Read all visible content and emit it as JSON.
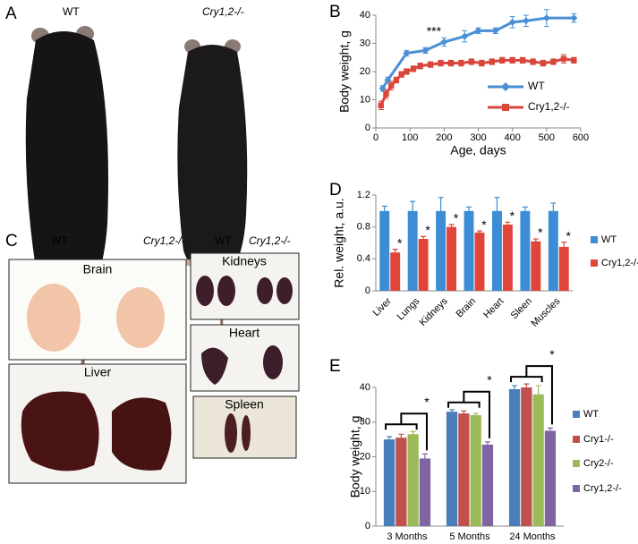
{
  "figure_a": {
    "panel": "A",
    "labels": [
      "WT",
      "Cry1,2-/-"
    ]
  },
  "figure_c": {
    "panel": "C",
    "labels": [
      "WT",
      "Cry1,2-/-",
      "WT",
      "Cry1,2-/-"
    ],
    "organs": [
      "Brain",
      "Liver",
      "Kidneys",
      "Heart",
      "Spleen"
    ]
  },
  "chart_data": [
    {
      "type": "line",
      "panel": "B",
      "x_label": "Age, days",
      "y_label": "Body weight, g",
      "annotation": "***",
      "xlim": [
        0,
        600
      ],
      "xticks": [
        0,
        100,
        200,
        300,
        400,
        500,
        600
      ],
      "ylim": [
        0,
        40
      ],
      "yticks": [
        0,
        10,
        20,
        30,
        40
      ],
      "legend": "right",
      "series": [
        {
          "name": "WT",
          "color": "#4a8fd4",
          "marker": "diamond",
          "x": [
            20,
            35,
            90,
            145,
            200,
            260,
            300,
            350,
            400,
            440,
            500,
            580
          ],
          "values": [
            14,
            17,
            26.5,
            27.5,
            30.5,
            32.5,
            34.5,
            34.5,
            37.5,
            38,
            39,
            39
          ],
          "errors": [
            1,
            1,
            1,
            1,
            1.5,
            2,
            1,
            1,
            2,
            2,
            3,
            1.5
          ]
        },
        {
          "name": "Cry1,2-/-",
          "color": "#d9463b",
          "marker": "square",
          "x": [
            15,
            30,
            45,
            60,
            75,
            90,
            110,
            130,
            160,
            190,
            220,
            250,
            280,
            310,
            340,
            370,
            400,
            430,
            460,
            490,
            520,
            550,
            580
          ],
          "values": [
            8,
            12,
            15,
            17,
            19,
            20,
            21,
            22,
            22.5,
            23,
            23,
            23,
            23.5,
            23,
            23.5,
            24,
            24,
            24,
            23.5,
            23,
            23.5,
            24.5,
            24
          ],
          "errors": [
            1.5,
            1.5,
            1.5,
            1,
            1,
            1,
            1,
            1,
            1,
            1,
            1,
            1,
            1,
            1,
            1,
            1,
            1,
            1,
            1,
            1,
            1,
            1.5,
            1
          ]
        }
      ]
    },
    {
      "type": "bar",
      "panel": "D",
      "y_label": "Rel. weight, a.u.",
      "annotation": "*",
      "label_rotation": -45,
      "categories": [
        "Liver",
        "Lungs",
        "Kidneys",
        "Brain",
        "Heart",
        "Sleen",
        "Muscles"
      ],
      "ylim": [
        0,
        1.2
      ],
      "yticks": [
        0,
        0.4,
        0.8,
        1.2
      ],
      "legend": "right",
      "series": [
        {
          "name": "WT",
          "color": "#3c8dd6",
          "values": [
            1,
            1,
            1,
            1,
            1,
            1,
            1
          ],
          "errors": [
            0.06,
            0.12,
            0.17,
            0.05,
            0.17,
            0.05,
            0.1
          ]
        },
        {
          "name": "Cry1,2-/-",
          "color": "#e0453a",
          "values": [
            0.48,
            0.65,
            0.8,
            0.73,
            0.83,
            0.62,
            0.55
          ],
          "errors": [
            0.04,
            0.03,
            0.03,
            0.02,
            0.03,
            0.03,
            0.06
          ]
        }
      ]
    },
    {
      "type": "bar",
      "panel": "E",
      "y_label": "Body weight, g",
      "annotation": "*",
      "brackets": true,
      "categories": [
        "3 Months",
        "5 Months",
        "24 Months"
      ],
      "ylim": [
        0,
        40
      ],
      "yticks": [
        0,
        10,
        20,
        30,
        40
      ],
      "legend": "right",
      "series": [
        {
          "name": "WT",
          "color": "#4a7ebb",
          "values": [
            25,
            33,
            39.5
          ],
          "errors": [
            0.8,
            0.6,
            1
          ]
        },
        {
          "name": "Cry1-/-",
          "color": "#c0504d",
          "values": [
            25.5,
            32.5,
            40
          ],
          "errors": [
            1,
            0.7,
            1
          ]
        },
        {
          "name": "Cry2-/-",
          "color": "#9bbb59",
          "values": [
            26.5,
            32,
            38
          ],
          "errors": [
            0.8,
            0.5,
            2.5
          ]
        },
        {
          "name": "Cry1,2-/-",
          "color": "#8064a2",
          "values": [
            19.5,
            23.5,
            27.5
          ],
          "errors": [
            1.3,
            0.8,
            0.8
          ]
        }
      ]
    }
  ]
}
